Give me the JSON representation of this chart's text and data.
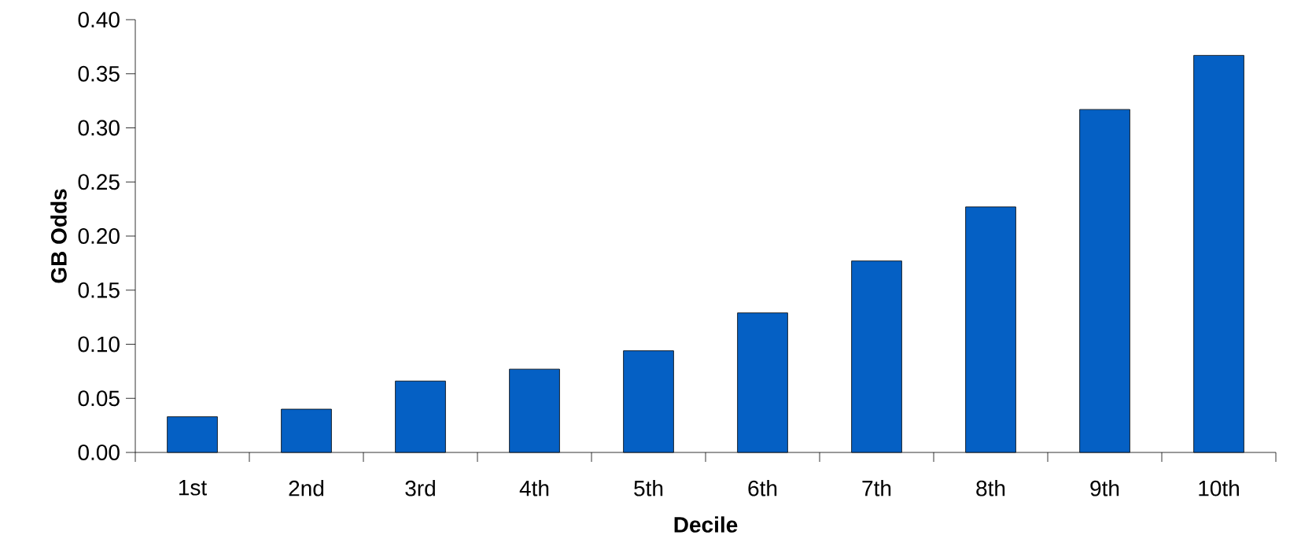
{
  "chart_data": {
    "type": "bar",
    "xlabel": "Decile",
    "ylabel": "GB Odds",
    "categories": [
      "1st",
      "2nd",
      "3rd",
      "4th",
      "5th",
      "6th",
      "7th",
      "8th",
      "9th",
      "10th"
    ],
    "values": [
      0.033,
      0.04,
      0.066,
      0.077,
      0.094,
      0.129,
      0.177,
      0.227,
      0.317,
      0.367
    ],
    "color": "#0560c4",
    "ylim": [
      0,
      0.4
    ],
    "yticks": [
      {
        "value": 0,
        "label": "0.00"
      },
      {
        "value": 0.05,
        "label": "0.05"
      },
      {
        "value": 0.1,
        "label": "0.10"
      },
      {
        "value": 0.15,
        "label": "0.15"
      },
      {
        "value": 0.2,
        "label": "0.20"
      },
      {
        "value": 0.25,
        "label": "0.25"
      },
      {
        "value": 0.3,
        "label": "0.30"
      },
      {
        "value": 0.35,
        "label": "0.35"
      },
      {
        "value": 0.4,
        "label": "0.40"
      }
    ],
    "grid": false
  }
}
